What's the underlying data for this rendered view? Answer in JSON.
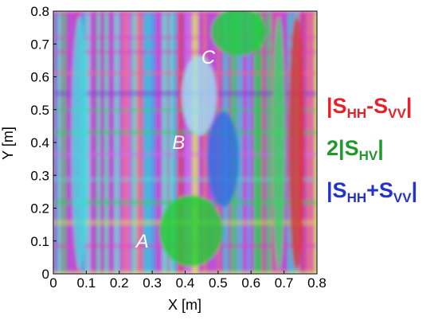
{
  "chart_data": {
    "type": "image",
    "xlabel": "X [m]",
    "ylabel": "Y [m]",
    "xlim": [
      0,
      0.8
    ],
    "ylim": [
      0,
      0.8
    ],
    "xticks": [
      0,
      0.1,
      0.2,
      0.3,
      0.4,
      0.5,
      0.6,
      0.7,
      0.8
    ],
    "yticks": [
      0,
      0.1,
      0.2,
      0.3,
      0.4,
      0.5,
      0.6,
      0.7,
      0.8
    ],
    "legend": [
      {
        "color": "#e8202a",
        "segments": [
          {
            "text": "|S",
            "subscript": false
          },
          {
            "text": "HH",
            "subscript": true
          },
          {
            "text": "-S",
            "subscript": false
          },
          {
            "text": "VV",
            "subscript": true
          },
          {
            "text": "|",
            "subscript": false
          }
        ]
      },
      {
        "color": "#1f9a2a",
        "segments": [
          {
            "text": "2|S",
            "subscript": false
          },
          {
            "text": "HV",
            "subscript": true
          },
          {
            "text": "|",
            "subscript": false
          }
        ]
      },
      {
        "color": "#2433c8",
        "segments": [
          {
            "text": "|S",
            "subscript": false
          },
          {
            "text": "HH",
            "subscript": true
          },
          {
            "text": "+S",
            "subscript": false
          },
          {
            "text": "VV",
            "subscript": true
          },
          {
            "text": "|",
            "subscript": false
          }
        ]
      }
    ],
    "annotations": [
      {
        "text": "A",
        "x": 0.27,
        "y": 0.1
      },
      {
        "text": "B",
        "x": 0.38,
        "y": 0.4
      },
      {
        "text": "C",
        "x": 0.47,
        "y": 0.66
      }
    ]
  }
}
